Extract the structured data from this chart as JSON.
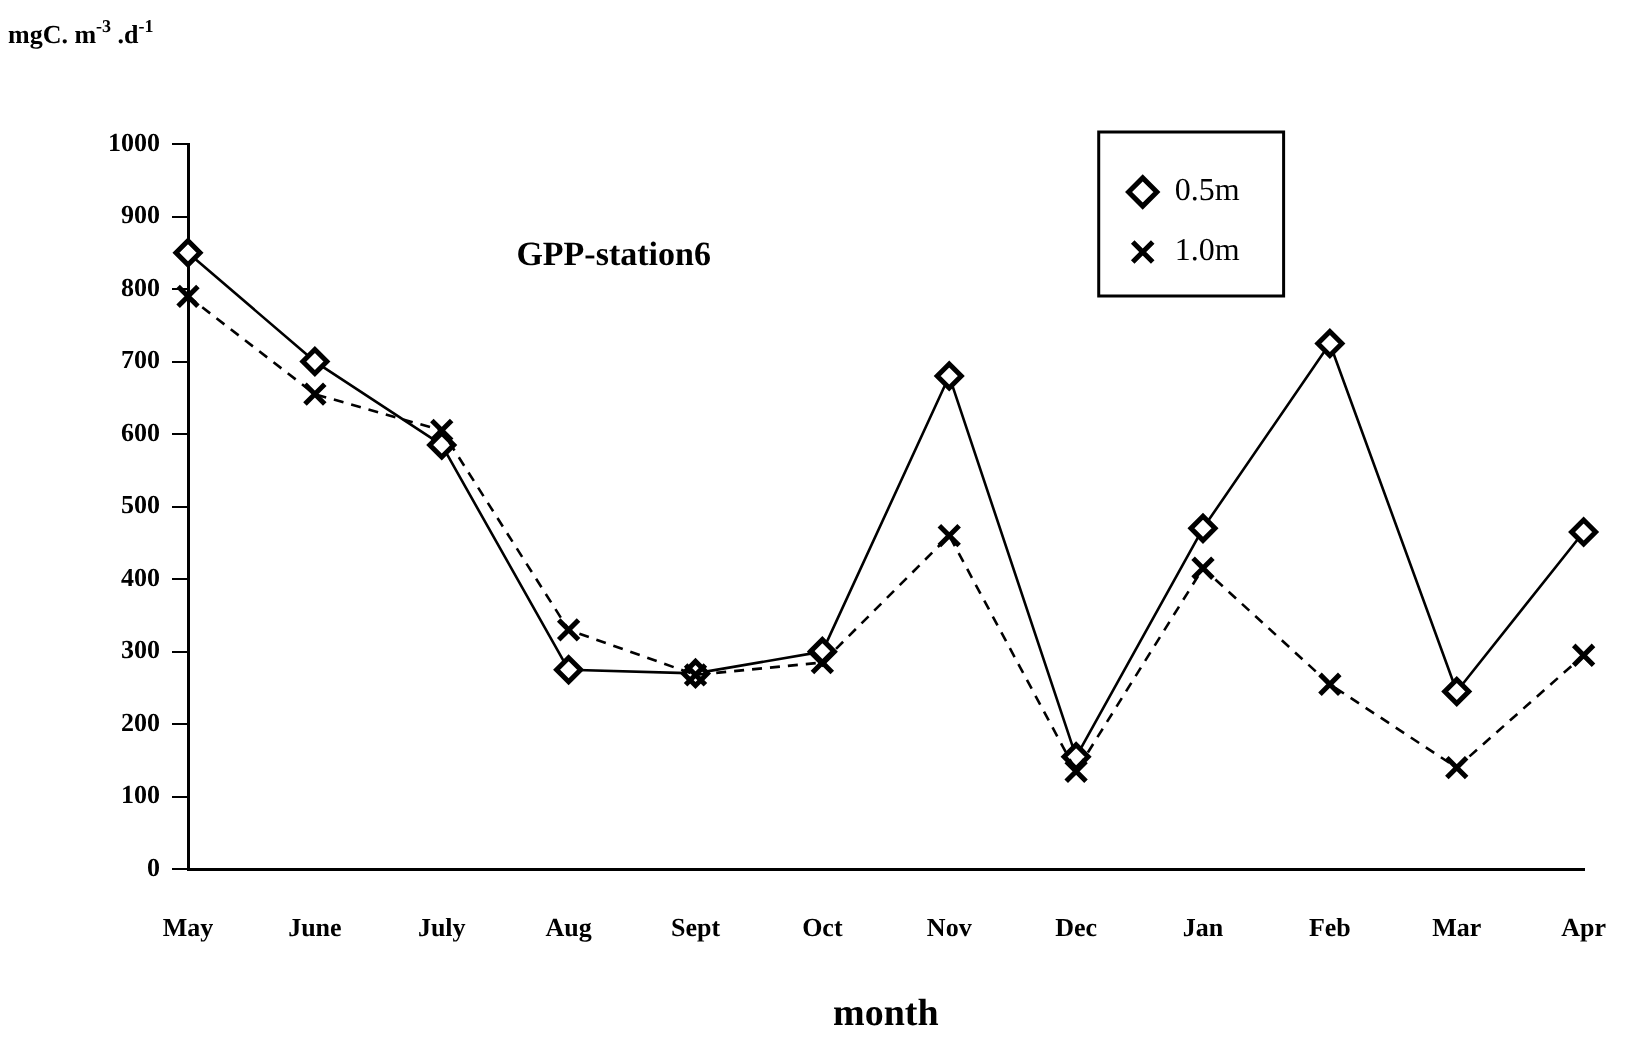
{
  "chart_data": {
    "type": "line",
    "title": "GPP-station6",
    "xlabel": "month",
    "ylabel": "mgC. m$^{-3}$ .d$^{-1}$",
    "categories": [
      "May",
      "June",
      "July",
      "Aug",
      "Sept",
      "Oct",
      "Nov",
      "Dec",
      "Jan",
      "Feb",
      "Mar",
      "Apr"
    ],
    "series": [
      {
        "name": "0.5m",
        "color": "#000000",
        "marker": "diamond",
        "line_style": "solid",
        "values": [
          850,
          700,
          585,
          275,
          270,
          300,
          680,
          155,
          470,
          725,
          245,
          465
        ]
      },
      {
        "name": "1.0m",
        "color": "#000000",
        "marker": "cross",
        "line_style": "dashed",
        "values": [
          790,
          655,
          605,
          330,
          268,
          285,
          460,
          135,
          415,
          255,
          140,
          295
        ]
      }
    ],
    "ylim": [
      0,
      1000
    ],
    "yticks": [
      0,
      100,
      200,
      300,
      400,
      500,
      600,
      700,
      800,
      900,
      1000
    ],
    "grid": false,
    "legend": "top right"
  }
}
